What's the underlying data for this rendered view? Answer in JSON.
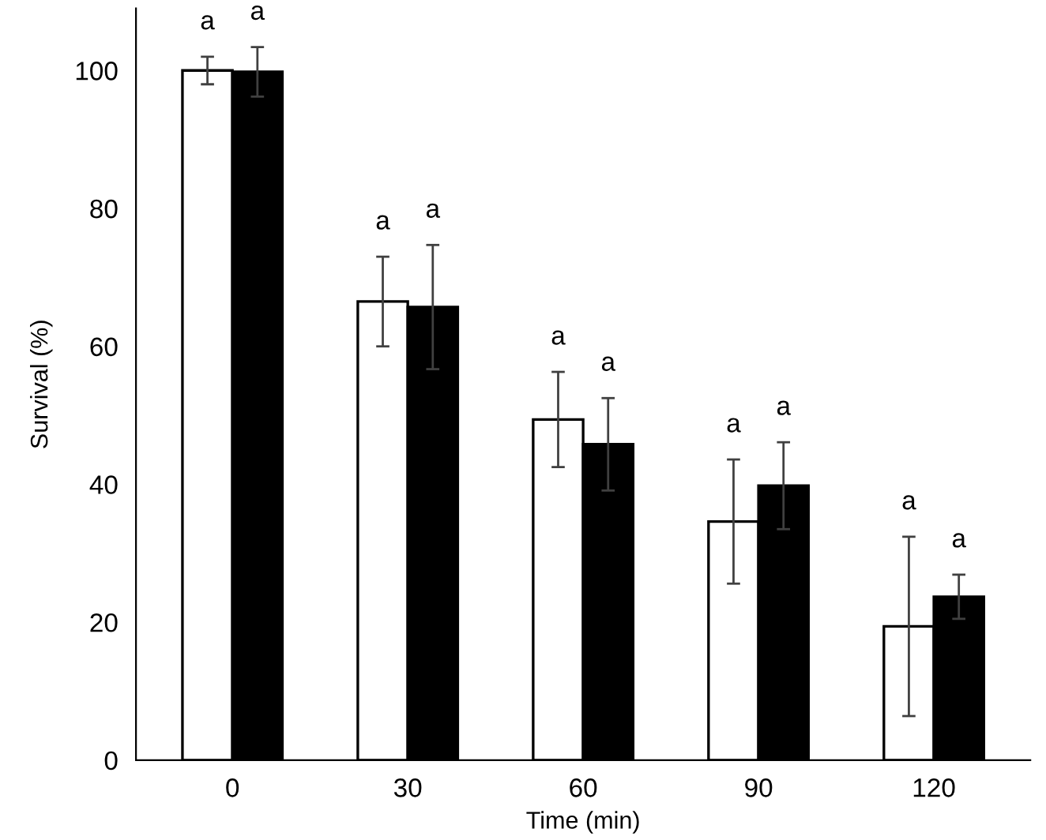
{
  "chart_data": {
    "type": "bar",
    "xlabel": "Time (min)",
    "ylabel": "Survival (%)",
    "categories": [
      "0",
      "30",
      "60",
      "90",
      "120"
    ],
    "series": [
      {
        "color": "#ffffff",
        "values": [
          100,
          66.5,
          49.4,
          34.6,
          19.4
        ],
        "errors": [
          2,
          6.5,
          6.9,
          9,
          13
        ]
      },
      {
        "color": "#000000",
        "values": [
          99.8,
          65.7,
          45.8,
          39.8,
          23.7
        ],
        "errors": [
          3.6,
          9,
          6.7,
          6.3,
          3.2
        ]
      }
    ],
    "ylim": [
      0,
      109
    ],
    "yticks": [
      0,
      20,
      40,
      60,
      80,
      100
    ],
    "grid": false,
    "legend": false,
    "annotations": [
      "a",
      "a",
      "a",
      "a",
      "a",
      "a",
      "a",
      "a",
      "a",
      "a"
    ]
  }
}
